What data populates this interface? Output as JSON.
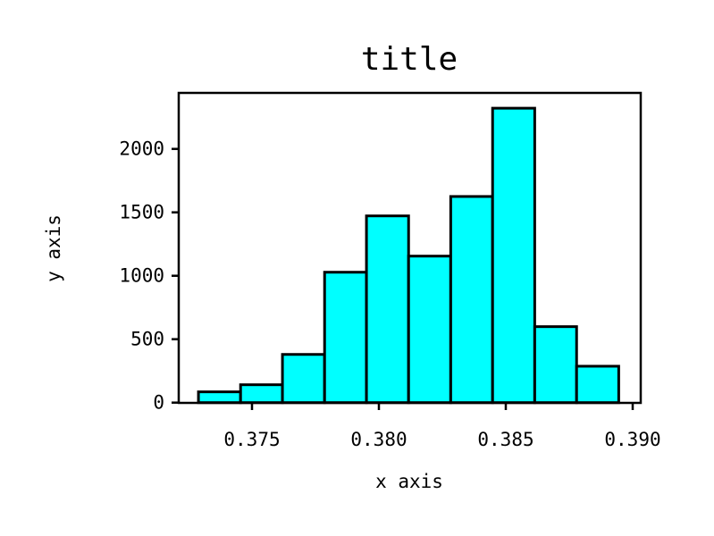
{
  "chart_data": {
    "type": "bar",
    "title": "title",
    "xlabel": "x axis",
    "ylabel": "y axis",
    "bin_edges": [
      0.37289,
      0.37455,
      0.3762,
      0.37786,
      0.37951,
      0.38117,
      0.38283,
      0.38448,
      0.38614,
      0.38779,
      0.38945
    ],
    "values": [
      85,
      141,
      380,
      1028,
      1472,
      1155,
      1625,
      2321,
      599,
      287
    ],
    "xlim": [
      0.3721,
      0.3903
    ],
    "ylim": [
      0,
      2440
    ],
    "xticks": [
      0.375,
      0.38,
      0.385,
      0.39
    ],
    "xtick_labels": [
      "0.375",
      "0.380",
      "0.385",
      "0.390"
    ],
    "yticks": [
      0,
      500,
      1000,
      1500,
      2000
    ],
    "ytick_labels": [
      "0",
      "500",
      "1000",
      "1500",
      "2000"
    ],
    "grid": false,
    "bar_color": "#00ffff",
    "edge_color": "#000000"
  }
}
